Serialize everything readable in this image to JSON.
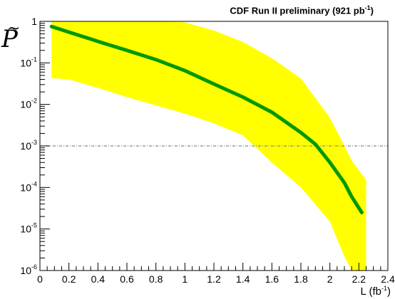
{
  "chart_data": {
    "type": "line",
    "title": {
      "prefix": "CDF Run II preliminary (921 pb",
      "sup": "-1",
      "suffix": ")"
    },
    "xlabel": {
      "prefix": "L (fb",
      "sup": "-1",
      "suffix": ")"
    },
    "ylabel": {
      "tilde": "~",
      "symbol": "P"
    },
    "xlim": [
      0,
      2.4
    ],
    "ylim": [
      1e-06,
      1
    ],
    "yscale": "log",
    "x_ticks": [
      "0",
      "0.2",
      "0.4",
      "0.6",
      "0.8",
      "1",
      "1.2",
      "1.4",
      "1.6",
      "1.8",
      "2",
      "2.2",
      "2.4"
    ],
    "y_ticks": [
      {
        "base": "10",
        "exp": "-6",
        "value": 1e-06
      },
      {
        "base": "10",
        "exp": "-5",
        "value": 1e-05
      },
      {
        "base": "10",
        "exp": "-4",
        "value": 0.0001
      },
      {
        "base": "10",
        "exp": "-3",
        "value": 0.001
      },
      {
        "base": "10",
        "exp": "-2",
        "value": 0.01
      },
      {
        "base": "10",
        "exp": "-1",
        "value": 0.1
      },
      {
        "base": "1",
        "exp": "",
        "value": 1
      }
    ],
    "reference_line": 0.001,
    "band": {
      "color": "#ffff00",
      "x": [
        0.08,
        0.2,
        0.4,
        0.6,
        0.8,
        1.0,
        1.2,
        1.4,
        1.6,
        1.8,
        2.0,
        2.1,
        2.15,
        2.25
      ],
      "upper": [
        1.0,
        1.0,
        1.0,
        1.0,
        1.0,
        0.95,
        0.6,
        0.32,
        0.13,
        0.042,
        0.0048,
        0.001,
        0.00045,
        0.00015
      ],
      "lower": [
        0.043,
        0.04,
        0.025,
        0.015,
        0.0095,
        0.006,
        0.0035,
        0.0018,
        0.0004,
        0.0001,
        1.5e-05,
        2.2e-06,
        1e-06,
        1e-06
      ]
    },
    "series": [
      {
        "color": "#009900",
        "x": [
          0.08,
          0.2,
          0.4,
          0.6,
          0.8,
          1.0,
          1.2,
          1.4,
          1.6,
          1.8,
          1.9,
          2.0,
          2.1,
          2.15,
          2.22
        ],
        "y": [
          0.75,
          0.55,
          0.33,
          0.2,
          0.12,
          0.065,
          0.031,
          0.015,
          0.0065,
          0.0021,
          0.0011,
          0.0004,
          0.00013,
          6e-05,
          2.5e-05
        ]
      }
    ]
  }
}
